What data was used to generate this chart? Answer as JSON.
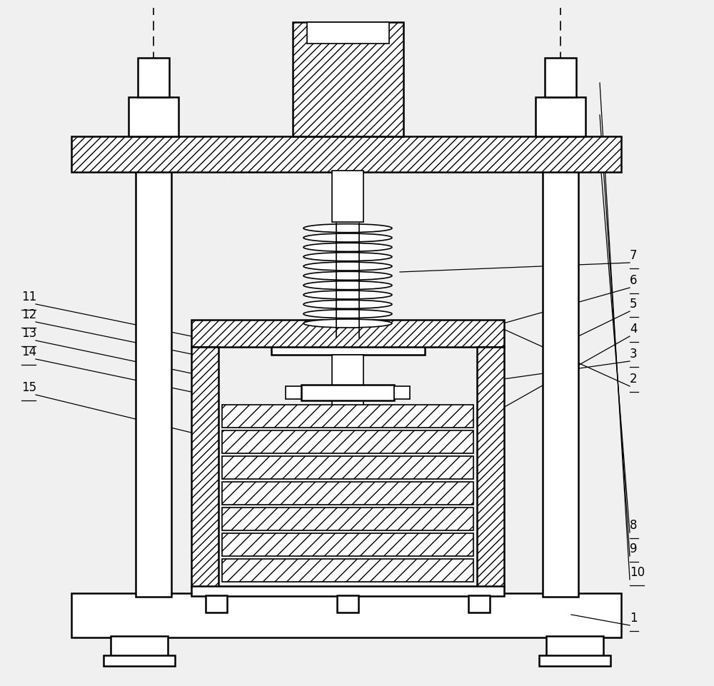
{
  "bg_color": "#f0f0f0",
  "fig_width": 10.0,
  "fig_height": 9.62,
  "dpi": 100,
  "line_color": "#000000",
  "white": "#ffffff",
  "gray": "#e8e8e8"
}
